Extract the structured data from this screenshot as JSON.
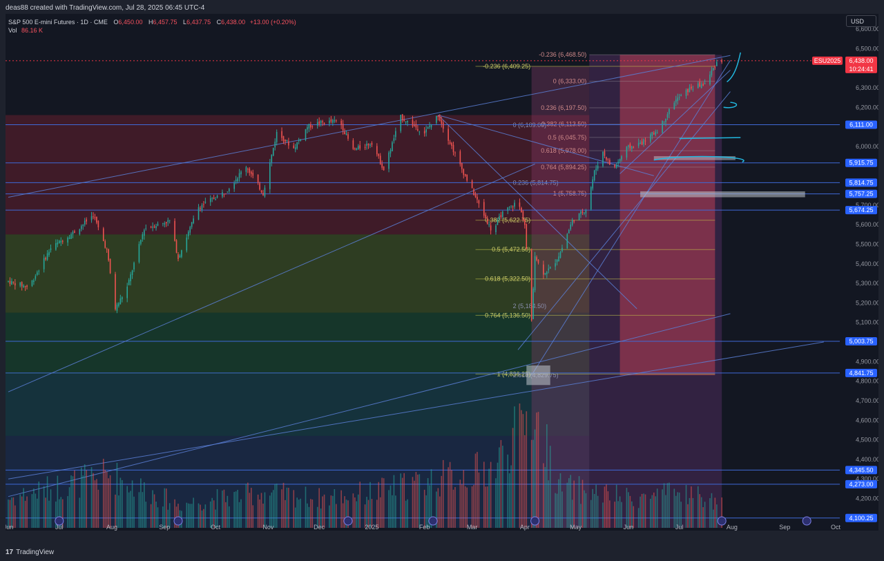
{
  "header": {
    "credit": "deas88 created with TradingView.com, Jul 28, 2025 06:45 UTC-4"
  },
  "legend": {
    "symbol": "S&P 500 E-mini Futures · 1D · CME",
    "open_label": "O",
    "open": "6,450.00",
    "high_label": "H",
    "high": "6,457.75",
    "low_label": "L",
    "low": "6,437.75",
    "close_label": "C",
    "close": "6,438.00",
    "change": "+13.00 (+0.20%)",
    "vol_label": "Vol",
    "vol": "86.16 K"
  },
  "currency": "USD",
  "footer": {
    "logo": "TradingView",
    "logo_mark": "17"
  },
  "colors": {
    "up": "#26a69a",
    "down": "#ef5350",
    "line": "#5b7fd6",
    "level_line": "#3f6ad8",
    "price_label_bg": "#2962ff",
    "current_bg": "#f23645"
  },
  "chart_data": {
    "type": "candlestick",
    "symbol": "ESU2025",
    "timeframe": "1D",
    "ylim": [
      4050,
      6600
    ],
    "y_ticks": [
      {
        "value": 6600,
        "label": "6,600.00"
      },
      {
        "value": 6500,
        "label": "6,500.00"
      },
      {
        "value": 6300,
        "label": "6,300.00"
      },
      {
        "value": 6200,
        "label": "6,200.00"
      },
      {
        "value": 6000,
        "label": "6,000.00"
      },
      {
        "value": 5700,
        "label": "5,700.00"
      },
      {
        "value": 5600,
        "label": "5,600.00"
      },
      {
        "value": 5500,
        "label": "5,500.00"
      },
      {
        "value": 5400,
        "label": "5,400.00"
      },
      {
        "value": 5300,
        "label": "5,300.00"
      },
      {
        "value": 5200,
        "label": "5,200.00"
      },
      {
        "value": 5100,
        "label": "5,100.00"
      },
      {
        "value": 4900,
        "label": "4,900.00"
      },
      {
        "value": 4800,
        "label": "4,800.00"
      },
      {
        "value": 4700,
        "label": "4,700.00"
      },
      {
        "value": 4600,
        "label": "4,600.00"
      },
      {
        "value": 4500,
        "label": "4,500.00"
      },
      {
        "value": 4400,
        "label": "4,400.00"
      },
      {
        "value": 4300,
        "label": "4,300.00"
      },
      {
        "value": 4200,
        "label": "4,200.00"
      }
    ],
    "x_ticks": [
      {
        "day": 0,
        "label": "Jun"
      },
      {
        "day": 30,
        "label": "Jul"
      },
      {
        "day": 61,
        "label": "Aug"
      },
      {
        "day": 92,
        "label": "Sep"
      },
      {
        "day": 122,
        "label": "Oct"
      },
      {
        "day": 153,
        "label": "Nov"
      },
      {
        "day": 183,
        "label": "Dec"
      },
      {
        "day": 214,
        "label": "2025"
      },
      {
        "day": 245,
        "label": "Feb"
      },
      {
        "day": 273,
        "label": "Mar"
      },
      {
        "day": 304,
        "label": "Apr"
      },
      {
        "day": 334,
        "label": "May"
      },
      {
        "day": 365,
        "label": "Jun"
      },
      {
        "day": 395,
        "label": "Jul"
      },
      {
        "day": 426,
        "label": "Aug"
      },
      {
        "day": 457,
        "label": "Sep"
      },
      {
        "day": 487,
        "label": "Oct"
      }
    ],
    "current_price": {
      "symbol": "ESU2025",
      "price": "6,438.00",
      "countdown": "10:24:41",
      "value": 6438
    },
    "horizontal_levels": [
      {
        "value": 6111,
        "label": "6,111.00"
      },
      {
        "value": 5915.75,
        "label": "5,915.75"
      },
      {
        "value": 5814.75,
        "label": "5,814.75"
      },
      {
        "value": 5757.25,
        "label": "5,757.25"
      },
      {
        "value": 5674.25,
        "label": "5,674.25"
      },
      {
        "value": 5003.75,
        "label": "5,003.75"
      },
      {
        "value": 4841.75,
        "label": "4,841.75"
      },
      {
        "value": 4345.5,
        "label": "4,345.50"
      },
      {
        "value": 4273,
        "label": "4,273.00"
      },
      {
        "value": 4100.25,
        "label": "4,100.25"
      }
    ],
    "fib_left": [
      {
        "value": 6409.25,
        "label": "-0.236 (6,409.25)"
      },
      {
        "value": 5622.75,
        "label": "0.382 (5,622.75)"
      },
      {
        "value": 5472.5,
        "label": "0.5 (5,472.50)"
      },
      {
        "value": 5322.5,
        "label": "0.618 (5,322.50)"
      },
      {
        "value": 5136.5,
        "label": "0.764 (5,136.50)"
      },
      {
        "value": 4836.25,
        "label": "1 (4,836.25)"
      }
    ],
    "fib_right": [
      {
        "value": 6468.5,
        "label": "-0.236 (6,468.50)"
      },
      {
        "value": 6333,
        "label": "0 (6,333.00)"
      },
      {
        "value": 6197.5,
        "label": "0.236 (6,197.50)"
      },
      {
        "value": 6113.5,
        "label": "0.382 (6,113.50)"
      },
      {
        "value": 6045.75,
        "label": "0.5 (6,045.75)"
      },
      {
        "value": 5978,
        "label": "0.618 (5,978.00)"
      },
      {
        "value": 5894.25,
        "label": "0.764 (5,894.25)"
      },
      {
        "value": 5758.75,
        "label": "1 (5,758.75)"
      }
    ],
    "fib_partial": [
      {
        "value": 6109,
        "label": "0 (6,109.00)"
      },
      {
        "value": 5814.75,
        "label": "0.236 (5,814.75)"
      },
      {
        "value": 5184.5,
        "label": "2 (5,184.50)"
      },
      {
        "value": 4829.75,
        "label": "2.618 (4,829.75)"
      }
    ],
    "anchors": [
      {
        "day": 0,
        "price": 5310
      },
      {
        "day": 12,
        "price": 5280
      },
      {
        "day": 25,
        "price": 5480
      },
      {
        "day": 40,
        "price": 5570
      },
      {
        "day": 50,
        "price": 5650
      },
      {
        "day": 58,
        "price": 5470
      },
      {
        "day": 63,
        "price": 5170
      },
      {
        "day": 70,
        "price": 5280
      },
      {
        "day": 80,
        "price": 5580
      },
      {
        "day": 95,
        "price": 5620
      },
      {
        "day": 100,
        "price": 5430
      },
      {
        "day": 112,
        "price": 5690
      },
      {
        "day": 128,
        "price": 5770
      },
      {
        "day": 140,
        "price": 5900
      },
      {
        "day": 150,
        "price": 5760
      },
      {
        "day": 158,
        "price": 6070
      },
      {
        "day": 168,
        "price": 5990
      },
      {
        "day": 176,
        "price": 6100
      },
      {
        "day": 183,
        "price": 6120
      },
      {
        "day": 195,
        "price": 6130
      },
      {
        "day": 203,
        "price": 5980
      },
      {
        "day": 214,
        "price": 6020
      },
      {
        "day": 221,
        "price": 5880
      },
      {
        "day": 231,
        "price": 6150
      },
      {
        "day": 245,
        "price": 6070
      },
      {
        "day": 253,
        "price": 6160
      },
      {
        "day": 265,
        "price": 5920
      },
      {
        "day": 275,
        "price": 5740
      },
      {
        "day": 285,
        "price": 5560
      },
      {
        "day": 290,
        "price": 5650
      },
      {
        "day": 300,
        "price": 5720
      },
      {
        "day": 304,
        "price": 5600
      },
      {
        "day": 308,
        "price": 5100
      },
      {
        "day": 310,
        "price": 5450
      },
      {
        "day": 314,
        "price": 5350
      },
      {
        "day": 320,
        "price": 5380
      },
      {
        "day": 325,
        "price": 5460
      },
      {
        "day": 332,
        "price": 5620
      },
      {
        "day": 340,
        "price": 5680
      },
      {
        "day": 345,
        "price": 5870
      },
      {
        "day": 350,
        "price": 5970
      },
      {
        "day": 356,
        "price": 5880
      },
      {
        "day": 364,
        "price": 5990
      },
      {
        "day": 373,
        "price": 6020
      },
      {
        "day": 383,
        "price": 6090
      },
      {
        "day": 392,
        "price": 6230
      },
      {
        "day": 402,
        "price": 6300
      },
      {
        "day": 410,
        "price": 6320
      },
      {
        "day": 417,
        "price": 6430
      },
      {
        "day": 420,
        "price": 6438
      }
    ],
    "volume_anchors": [
      {
        "day": 0,
        "v": 0.25
      },
      {
        "day": 60,
        "v": 0.45
      },
      {
        "day": 100,
        "v": 0.2
      },
      {
        "day": 150,
        "v": 0.3
      },
      {
        "day": 183,
        "v": 0.25
      },
      {
        "day": 214,
        "v": 0.3
      },
      {
        "day": 265,
        "v": 0.45
      },
      {
        "day": 285,
        "v": 0.5
      },
      {
        "day": 308,
        "v": 1.0
      },
      {
        "day": 325,
        "v": 0.35
      },
      {
        "day": 365,
        "v": 0.25
      },
      {
        "day": 400,
        "v": 0.3
      },
      {
        "day": 420,
        "v": 0.2
      }
    ]
  }
}
